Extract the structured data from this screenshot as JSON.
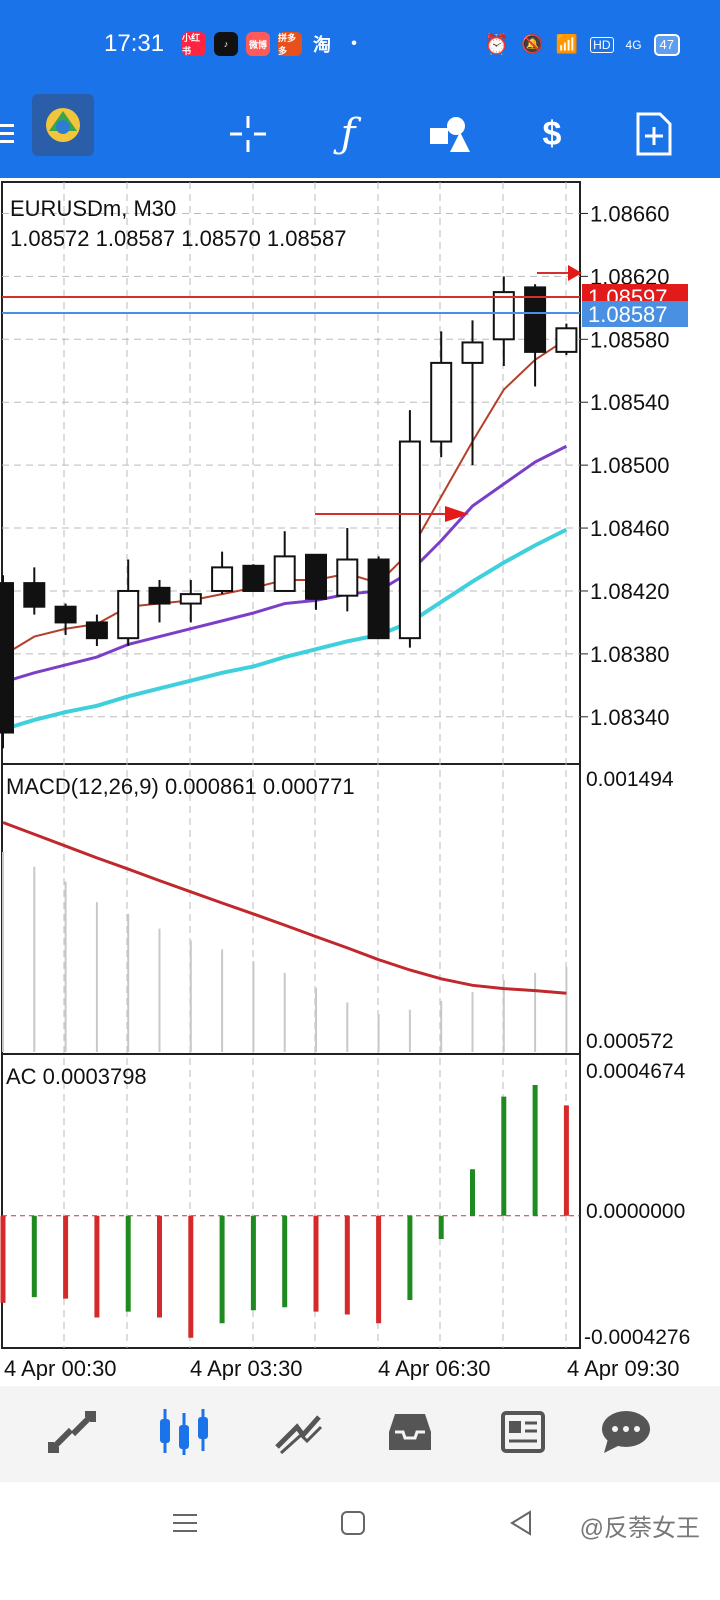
{
  "status_bar": {
    "time": "17:31",
    "app_icons": [
      "小红书",
      "tiktok",
      "微博",
      "拼多多",
      "淘"
    ],
    "network": "4G",
    "battery": "47",
    "hd_badge": "HD"
  },
  "toolbar": {
    "icons": [
      "menu-icon",
      "metatrader-logo",
      "crosshair-icon",
      "indicators-icon",
      "objects-icon",
      "trade-icon",
      "new-order-icon"
    ]
  },
  "chart": {
    "symbol_timeframe": "EURUSDm, M30",
    "ohlc": "1.08572 1.08587 1.08570 1.08587",
    "price_axis": [
      "1.08660",
      "1.08620",
      "1.08580",
      "1.08540",
      "1.08500",
      "1.08460",
      "1.08420",
      "1.08380",
      "1.08340"
    ],
    "ask_label": "1.08597",
    "bid_label": "1.08587",
    "ask_color": "#e31a1a",
    "bid_color": "#4a90e2",
    "time_axis": [
      "4 Apr 00:30",
      "4 Apr 03:30",
      "4 Apr 06:30",
      "4 Apr 09:30"
    ],
    "macd": {
      "label": "MACD(12,26,9) 0.000861 0.000771",
      "axis_top": "0.001494",
      "axis_bottom": "0.000572"
    },
    "ac": {
      "label": "AC 0.0003798",
      "axis_top": "0.0004674",
      "axis_mid": "0.0000000",
      "axis_bottom": "-0.0004276"
    }
  },
  "chart_data": {
    "type": "candlestick",
    "price_range": [
      1.0831,
      1.0868
    ],
    "candles": [
      {
        "o": 1.08425,
        "c": 1.0833,
        "h": 1.0843,
        "l": 1.0832
      },
      {
        "o": 1.08425,
        "c": 1.0841,
        "h": 1.08435,
        "l": 1.08405
      },
      {
        "o": 1.0841,
        "c": 1.084,
        "h": 1.08412,
        "l": 1.08392
      },
      {
        "o": 1.084,
        "c": 1.0839,
        "h": 1.08405,
        "l": 1.08385
      },
      {
        "o": 1.0839,
        "c": 1.0842,
        "h": 1.0844,
        "l": 1.08385
      },
      {
        "o": 1.08422,
        "c": 1.08412,
        "h": 1.08427,
        "l": 1.084
      },
      {
        "o": 1.08412,
        "c": 1.08418,
        "h": 1.08427,
        "l": 1.084
      },
      {
        "o": 1.0842,
        "c": 1.08435,
        "h": 1.08445,
        "l": 1.08418
      },
      {
        "o": 1.08436,
        "c": 1.0842,
        "h": 1.08437,
        "l": 1.0842
      },
      {
        "o": 1.0842,
        "c": 1.08442,
        "h": 1.08458,
        "l": 1.0842
      },
      {
        "o": 1.08443,
        "c": 1.08415,
        "h": 1.08443,
        "l": 1.08408
      },
      {
        "o": 1.08417,
        "c": 1.0844,
        "h": 1.0846,
        "l": 1.08407
      },
      {
        "o": 1.0844,
        "c": 1.0839,
        "h": 1.08442,
        "l": 1.0839
      },
      {
        "o": 1.0839,
        "c": 1.08515,
        "h": 1.08535,
        "l": 1.08384
      },
      {
        "o": 1.08515,
        "c": 1.08565,
        "h": 1.08585,
        "l": 1.08505
      },
      {
        "o": 1.08565,
        "c": 1.08578,
        "h": 1.08592,
        "l": 1.085
      },
      {
        "o": 1.0858,
        "c": 1.0861,
        "h": 1.0862,
        "l": 1.08563
      },
      {
        "o": 1.08613,
        "c": 1.08572,
        "h": 1.08615,
        "l": 1.0855
      },
      {
        "o": 1.08572,
        "c": 1.08587,
        "h": 1.0859,
        "l": 1.0857
      }
    ],
    "ma_red": [
      1.08379,
      1.08391,
      1.08396,
      1.08399,
      1.0841,
      1.08412,
      1.08414,
      1.08418,
      1.08422,
      1.08427,
      1.08427,
      1.08431,
      1.08425,
      1.08445,
      1.0848,
      1.08515,
      1.08548,
      1.08567,
      1.0858
    ],
    "ma_purple": [
      1.08362,
      1.08368,
      1.08373,
      1.08378,
      1.08386,
      1.08391,
      1.08396,
      1.08401,
      1.08406,
      1.08412,
      1.08414,
      1.08418,
      1.0842,
      1.08432,
      1.08452,
      1.08474,
      1.08488,
      1.08502,
      1.08512
    ],
    "ma_cyan": [
      1.08332,
      1.08338,
      1.08343,
      1.08347,
      1.08353,
      1.08358,
      1.08363,
      1.08368,
      1.08372,
      1.08378,
      1.08383,
      1.08388,
      1.08392,
      1.084,
      1.08413,
      1.08426,
      1.08438,
      1.08449,
      1.08459
    ],
    "macd_range": [
      0.000572,
      0.001494
    ],
    "macd_hist": [
      0.00125,
      0.0012,
      0.00115,
      0.00108,
      0.00104,
      0.00099,
      0.00095,
      0.00092,
      0.00088,
      0.00084,
      0.00079,
      0.00074,
      0.0007,
      0.000715,
      0.000745,
      0.000775,
      0.000815,
      0.00084,
      0.000861
    ],
    "macd_signal": [
      0.00135,
      0.00131,
      0.00127,
      0.00123,
      0.001192,
      0.001153,
      0.001115,
      0.001077,
      0.00104,
      0.001002,
      0.000963,
      0.000925,
      0.000885,
      0.00085,
      0.00082,
      0.000798,
      0.000787,
      0.00078,
      0.000771
    ],
    "ac_range": [
      -0.0004276,
      0.0004674
    ],
    "ac_values": [
      -0.0003,
      -0.00028,
      -0.000285,
      -0.00035,
      -0.00033,
      -0.00035,
      -0.00042,
      -0.00037,
      -0.000325,
      -0.000315,
      -0.00033,
      -0.00034,
      -0.00037,
      -0.00029,
      -8e-05,
      0.00016,
      0.00041,
      0.00045,
      0.00038
    ],
    "ac_colors": [
      "red",
      "green",
      "red",
      "red",
      "green",
      "red",
      "red",
      "green",
      "green",
      "green",
      "red",
      "red",
      "red",
      "green",
      "green",
      "green",
      "green",
      "green",
      "red"
    ]
  },
  "bottom_nav": [
    "quotes-icon",
    "chart-icon",
    "trade-icon",
    "history-icon",
    "news-icon",
    "chat-icon"
  ],
  "watermark": "@反萘女王"
}
